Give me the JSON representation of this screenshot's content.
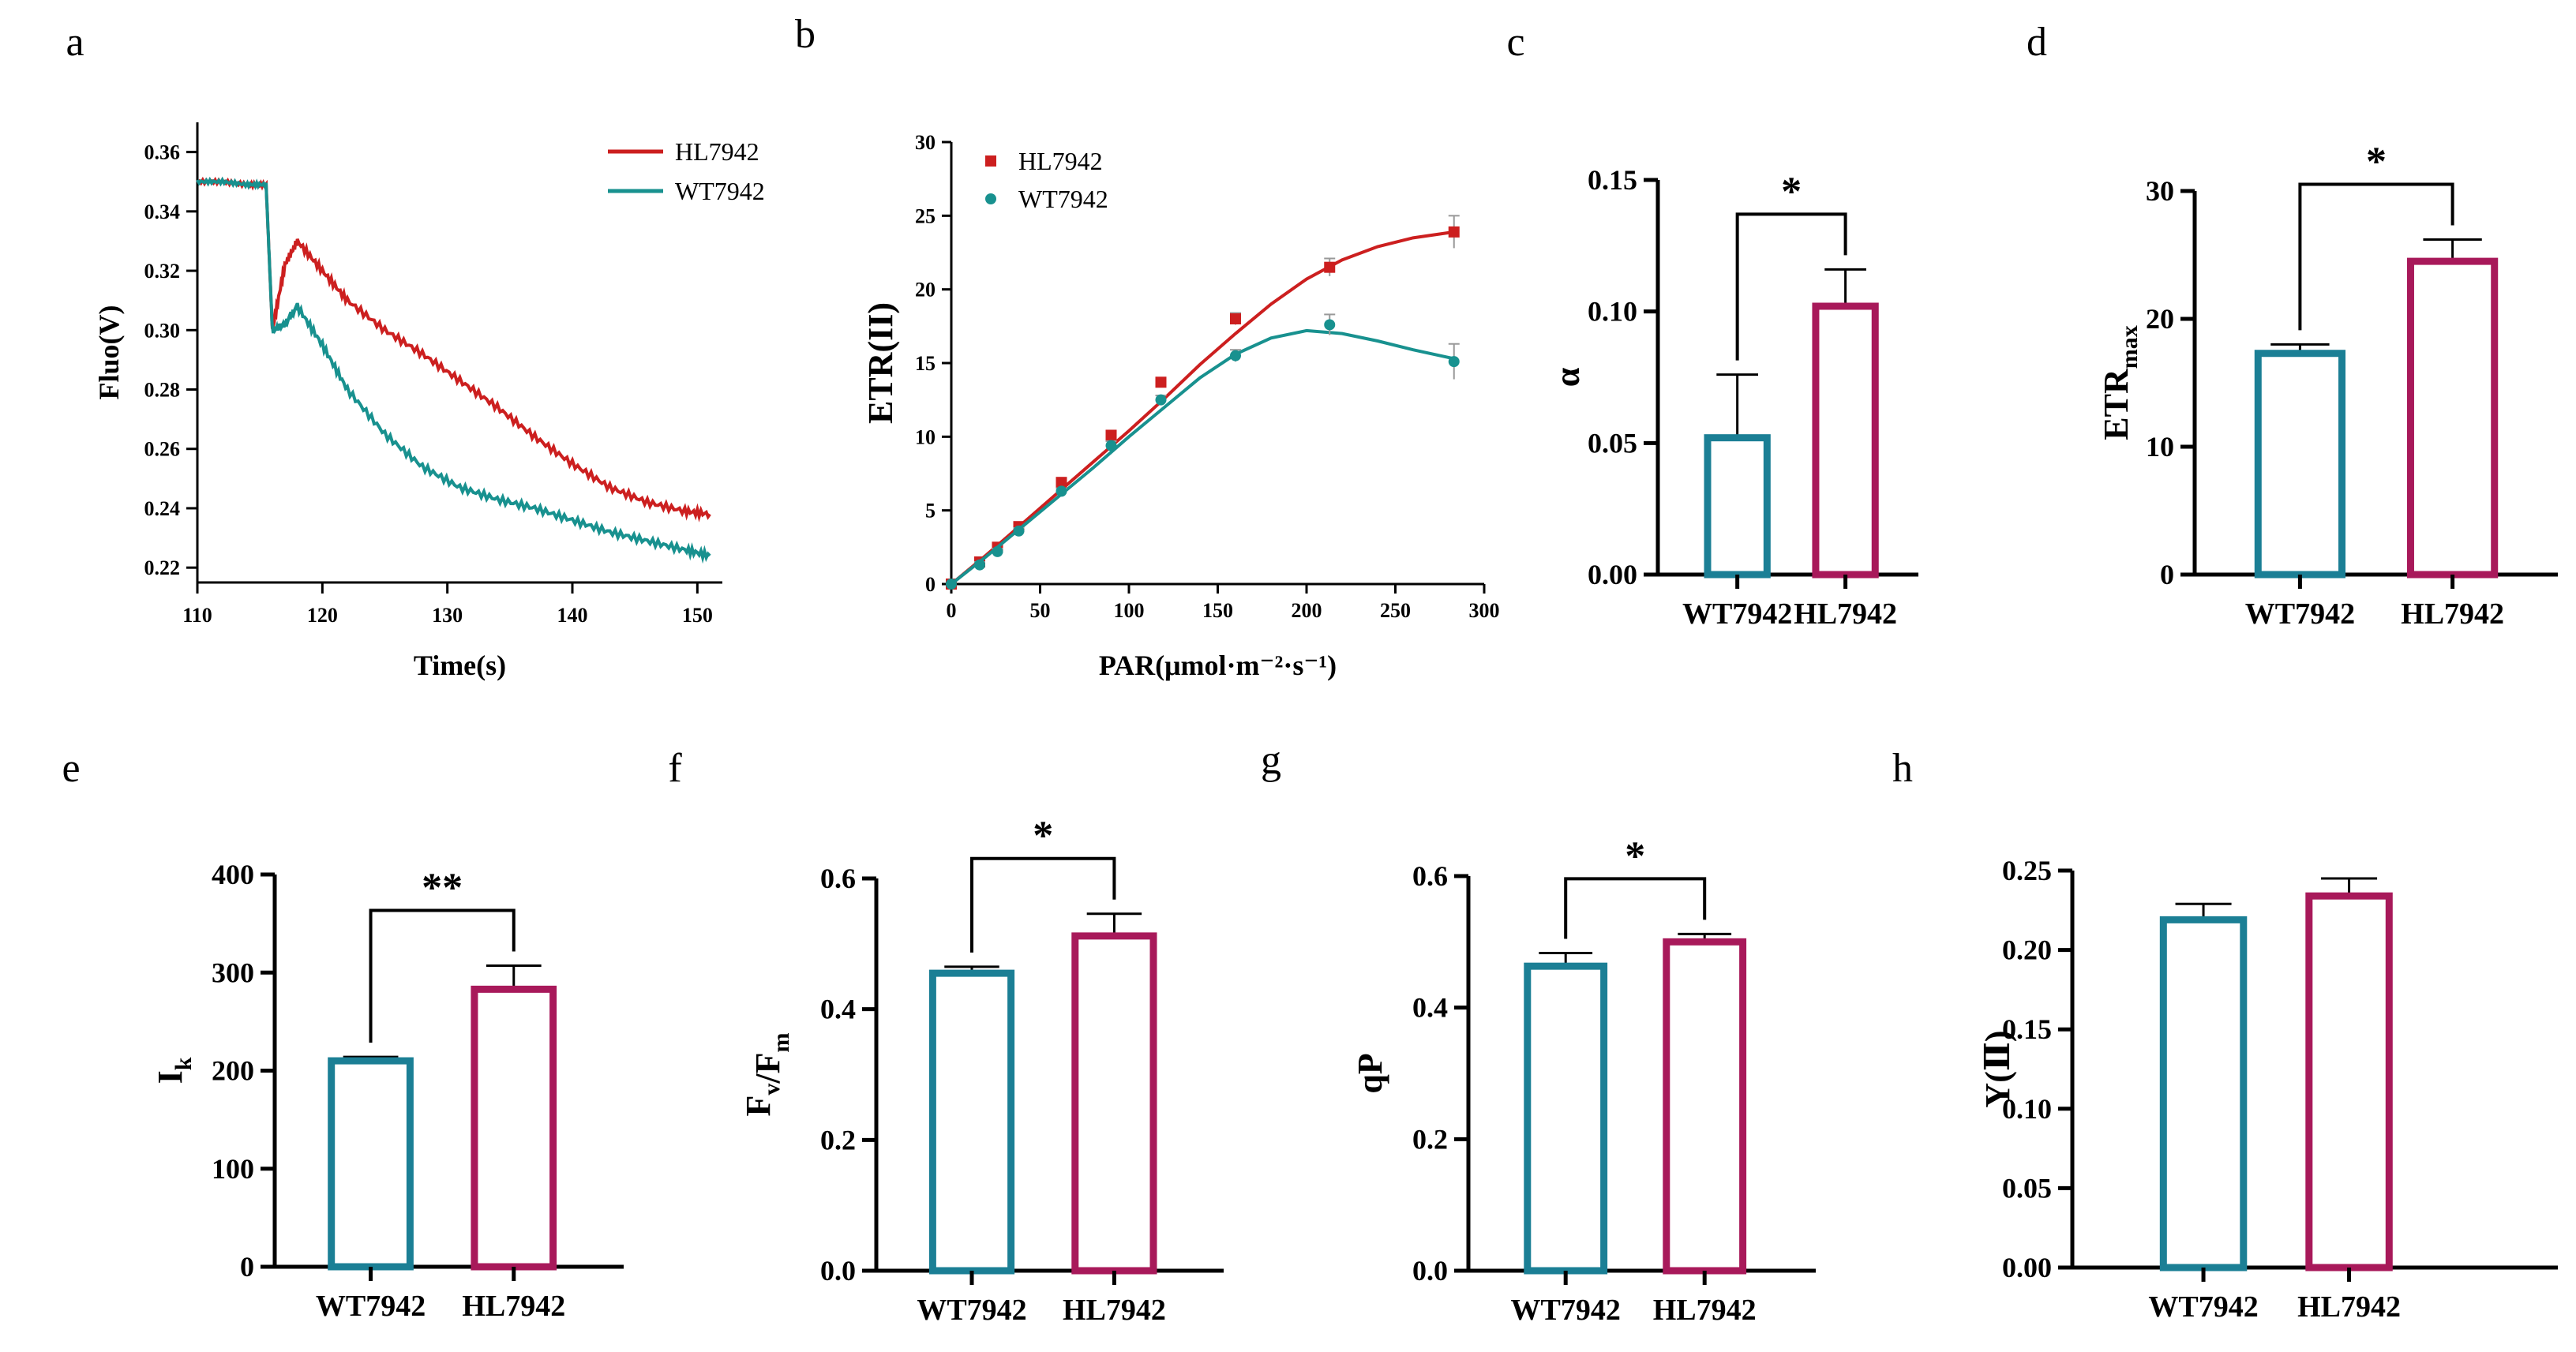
{
  "figure": {
    "panels": [
      "a",
      "b",
      "c",
      "d",
      "e",
      "f",
      "g",
      "h"
    ]
  },
  "colors": {
    "HL7942": "#cc1f1f",
    "WT7942": "#18918f",
    "bar_WT": "#1b7f95",
    "bar_HL": "#a8195a",
    "errorbar": "#000000"
  },
  "chart_data": [
    {
      "panel": "a",
      "type": "line",
      "title": "",
      "xlabel": "Time(s)",
      "ylabel": "Fluo(V)",
      "xlim": [
        110,
        152
      ],
      "ylim": [
        0.215,
        0.37
      ],
      "xticks": [
        "110",
        "120",
        "130",
        "140",
        "150"
      ],
      "yticks": [
        "0.22",
        "0.24",
        "0.26",
        "0.28",
        "0.30",
        "0.32",
        "0.34",
        "0.36"
      ],
      "legend": [
        "HL7942",
        "WT7942"
      ],
      "series": [
        {
          "name": "HL7942",
          "x": [
            110,
            112,
            114,
            115.5,
            116,
            117,
            118,
            120,
            122,
            125,
            128,
            131,
            134,
            137,
            140,
            143,
            146,
            149,
            151
          ],
          "y": [
            0.35,
            0.35,
            0.349,
            0.349,
            0.3,
            0.322,
            0.33,
            0.32,
            0.31,
            0.3,
            0.292,
            0.283,
            0.274,
            0.264,
            0.255,
            0.247,
            0.242,
            0.239,
            0.238
          ]
        },
        {
          "name": "WT7942",
          "x": [
            110,
            112,
            114,
            115.5,
            116,
            117,
            118,
            120,
            122,
            125,
            128,
            131,
            134,
            137,
            140,
            143,
            146,
            149,
            151
          ],
          "y": [
            0.35,
            0.35,
            0.349,
            0.349,
            0.3,
            0.302,
            0.308,
            0.295,
            0.28,
            0.265,
            0.254,
            0.247,
            0.243,
            0.24,
            0.236,
            0.232,
            0.229,
            0.226,
            0.224
          ]
        }
      ]
    },
    {
      "panel": "b",
      "type": "scatter",
      "title": "",
      "xlabel": "PAR(μmol·m⁻²·s⁻¹)",
      "ylabel": "ETR(II)",
      "xlim": [
        0,
        300
      ],
      "ylim": [
        0,
        30
      ],
      "xticks": [
        "0",
        "50",
        "100",
        "150",
        "200",
        "250",
        "300"
      ],
      "yticks": [
        "0",
        "5",
        "10",
        "15",
        "20",
        "25",
        "30"
      ],
      "legend": [
        "HL7942",
        "WT7942"
      ],
      "series": [
        {
          "name": "HL7942",
          "x": [
            0,
            16,
            26,
            38,
            62,
            90,
            118,
            160,
            213,
            283
          ],
          "y": [
            0,
            1.5,
            2.5,
            3.9,
            6.9,
            10.1,
            13.7,
            18.0,
            21.5,
            23.9
          ],
          "err": [
            0,
            0.2,
            0.2,
            0.2,
            0.2,
            0.3,
            0.3,
            0.4,
            0.6,
            1.1
          ],
          "fit_x": [
            0,
            20,
            40,
            60,
            80,
            100,
            120,
            140,
            160,
            180,
            200,
            220,
            240,
            260,
            283
          ],
          "fit_y": [
            0,
            2.0,
            4.1,
            6.2,
            8.3,
            10.4,
            12.6,
            14.9,
            17.0,
            19.0,
            20.7,
            22.0,
            22.9,
            23.5,
            23.9
          ]
        },
        {
          "name": "WT7942",
          "x": [
            0,
            16,
            26,
            38,
            62,
            90,
            118,
            160,
            213,
            283
          ],
          "y": [
            0,
            1.3,
            2.2,
            3.6,
            6.3,
            9.4,
            12.5,
            15.5,
            17.6,
            15.1
          ],
          "err": [
            0,
            0.2,
            0.2,
            0.2,
            0.2,
            0.3,
            0.3,
            0.4,
            0.7,
            1.2
          ],
          "fit_x": [
            0,
            20,
            40,
            60,
            80,
            100,
            120,
            140,
            160,
            180,
            200,
            220,
            240,
            260,
            283
          ],
          "fit_y": [
            0,
            1.9,
            3.9,
            5.9,
            7.9,
            10.0,
            12.0,
            14.0,
            15.6,
            16.7,
            17.2,
            17.0,
            16.5,
            15.9,
            15.3
          ]
        }
      ]
    },
    {
      "panel": "c",
      "type": "bar",
      "ylabel": "α",
      "categories": [
        "WT7942",
        "HL7942"
      ],
      "values": [
        0.052,
        0.102
      ],
      "errors": [
        0.024,
        0.014
      ],
      "ylim": [
        0,
        0.15
      ],
      "yticks": [
        "0.00",
        "0.05",
        "0.10",
        "0.15"
      ],
      "significance": "*"
    },
    {
      "panel": "d",
      "type": "bar",
      "ylabel": "ETR",
      "ylabel_sub": "max",
      "categories": [
        "WT7942",
        "HL7942"
      ],
      "values": [
        17.3,
        24.5
      ],
      "errors": [
        0.7,
        1.7
      ],
      "ylim": [
        0,
        30
      ],
      "yticks": [
        "0",
        "10",
        "20",
        "30"
      ],
      "significance": "*"
    },
    {
      "panel": "e",
      "type": "bar",
      "ylabel": "I",
      "ylabel_sub": "k",
      "categories": [
        "WT7942",
        "HL7942"
      ],
      "values": [
        210,
        283
      ],
      "errors": [
        4,
        24
      ],
      "ylim": [
        0,
        400
      ],
      "yticks": [
        "0",
        "100",
        "200",
        "300",
        "400"
      ],
      "significance": "**"
    },
    {
      "panel": "f",
      "type": "bar",
      "ylabel": "F",
      "ylabel_sub": "v",
      "ylabel_mid": "/F",
      "ylabel_sub2": "m",
      "categories": [
        "WT7942",
        "HL7942"
      ],
      "values": [
        0.455,
        0.512
      ],
      "errors": [
        0.01,
        0.034
      ],
      "ylim": [
        0,
        0.6
      ],
      "yticks": [
        "0.0",
        "0.2",
        "0.4",
        "0.6"
      ],
      "significance": "*"
    },
    {
      "panel": "g",
      "type": "bar",
      "ylabel": "qP",
      "categories": [
        "WT7942",
        "HL7942"
      ],
      "values": [
        0.463,
        0.5
      ],
      "errors": [
        0.02,
        0.012
      ],
      "ylim": [
        0,
        0.6
      ],
      "yticks": [
        "0.0",
        "0.2",
        "0.4",
        "0.6"
      ],
      "significance": "*"
    },
    {
      "panel": "h",
      "type": "bar",
      "ylabel": "Y(Ⅱ)",
      "categories": [
        "WT7942",
        "HL7942"
      ],
      "values": [
        0.219,
        0.234
      ],
      "errors": [
        0.01,
        0.011
      ],
      "ylim": [
        0,
        0.25
      ],
      "yticks": [
        "0.00",
        "0.05",
        "0.10",
        "0.15",
        "0.20",
        "0.25"
      ],
      "significance": ""
    }
  ]
}
